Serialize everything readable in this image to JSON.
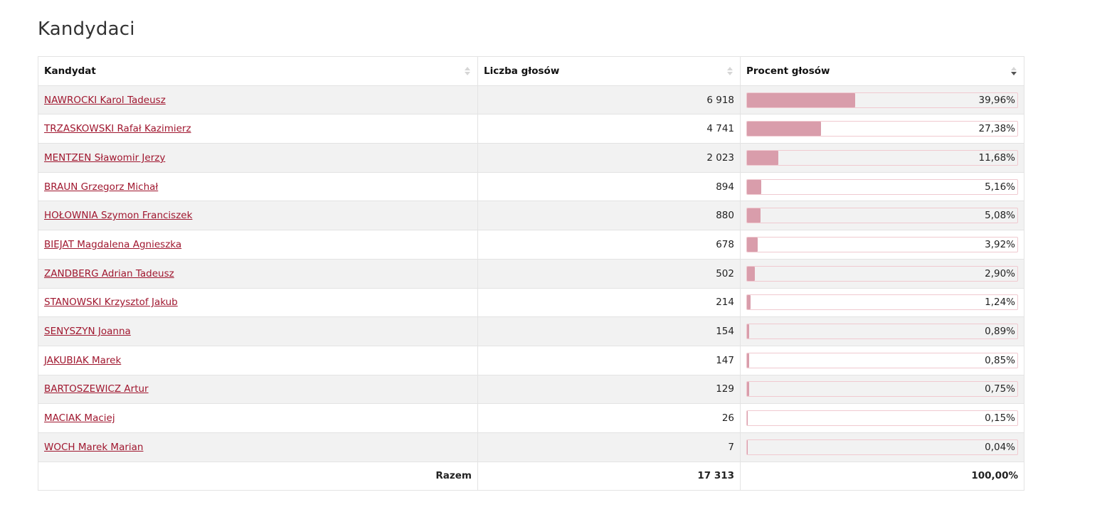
{
  "page": {
    "title": "Kandydaci"
  },
  "table": {
    "headers": [
      "Kandydat",
      "Liczba głosów",
      "Procent głosów"
    ],
    "rows": [
      {
        "name": "NAWROCKI Karol Tadeusz",
        "votes": "6 918",
        "percent_label": "39,96%",
        "percent": 39.96
      },
      {
        "name": "TRZASKOWSKI Rafał Kazimierz",
        "votes": "4 741",
        "percent_label": "27,38%",
        "percent": 27.38
      },
      {
        "name": "MENTZEN Sławomir Jerzy",
        "votes": "2 023",
        "percent_label": "11,68%",
        "percent": 11.68
      },
      {
        "name": "BRAUN Grzegorz Michał",
        "votes": "894",
        "percent_label": "5,16%",
        "percent": 5.16
      },
      {
        "name": "HOŁOWNIA Szymon Franciszek",
        "votes": "880",
        "percent_label": "5,08%",
        "percent": 5.08
      },
      {
        "name": "BIEJAT Magdalena Agnieszka",
        "votes": "678",
        "percent_label": "3,92%",
        "percent": 3.92
      },
      {
        "name": "ZANDBERG Adrian Tadeusz",
        "votes": "502",
        "percent_label": "2,90%",
        "percent": 2.9
      },
      {
        "name": "STANOWSKI Krzysztof Jakub",
        "votes": "214",
        "percent_label": "1,24%",
        "percent": 1.24
      },
      {
        "name": "SENYSZYN Joanna",
        "votes": "154",
        "percent_label": "0,89%",
        "percent": 0.89
      },
      {
        "name": "JAKUBIAK Marek",
        "votes": "147",
        "percent_label": "0,85%",
        "percent": 0.85
      },
      {
        "name": "BARTOSZEWICZ Artur",
        "votes": "129",
        "percent_label": "0,75%",
        "percent": 0.75
      },
      {
        "name": "MACIAK Maciej",
        "votes": "26",
        "percent_label": "0,15%",
        "percent": 0.15
      },
      {
        "name": "WOCH Marek Marian",
        "votes": "7",
        "percent_label": "0,04%",
        "percent": 0.04
      }
    ],
    "footer": {
      "label": "Razem",
      "votes": "17 313",
      "percent": "100,00%"
    },
    "sort": {
      "column": "Procent głosów",
      "direction": "descending"
    }
  },
  "colors": {
    "link": "#a0172f",
    "bar_fill": "#d99dab",
    "bar_border": "#f0c9d0",
    "row_stripe": "#f2f2f2"
  }
}
